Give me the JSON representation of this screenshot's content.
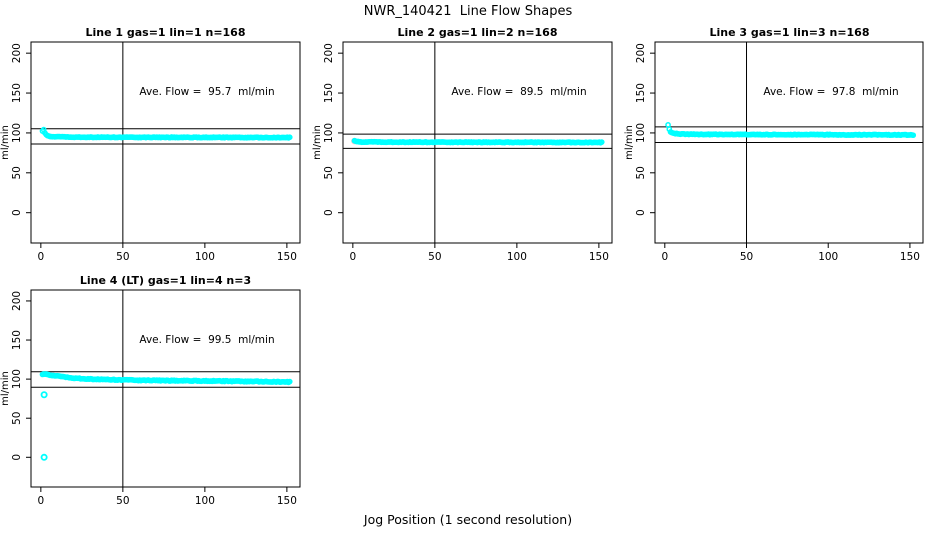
{
  "figure": {
    "title": "NWR_140421  Line Flow Shapes",
    "xlabel": "Jog Position (1 second resolution)"
  },
  "colors": {
    "series": "#00FFFF",
    "first_point": "#FFC0CB",
    "axis": "#000000",
    "background": "#FFFFFF"
  },
  "chart_data": [
    {
      "type": "scatter",
      "title": "Line 1 gas=1 lin=1 n=168",
      "annotation": "Ave. Flow =  95.7  ml/min",
      "ave_flow_ml_min": 95.7,
      "n": 168,
      "ylabel": "ml/min",
      "x_ticks": [
        0,
        50,
        100,
        150
      ],
      "y_ticks": [
        0,
        50,
        100,
        150,
        200
      ],
      "xlim": [
        -6,
        158
      ],
      "ylim": [
        -38,
        214
      ],
      "vline_x": 50,
      "hlines": [
        105.3,
        86.1
      ],
      "series_keypoints": [
        [
          1,
          102
        ],
        [
          2,
          104.5
        ],
        [
          2.6,
          99
        ],
        [
          3.5,
          97
        ],
        [
          5,
          96
        ],
        [
          8,
          95.2
        ],
        [
          15,
          94.8
        ],
        [
          30,
          94.6
        ],
        [
          60,
          94.5
        ],
        [
          100,
          94.4
        ],
        [
          152,
          94.2
        ]
      ],
      "pink_points": [],
      "outlier_points": []
    },
    {
      "type": "scatter",
      "title": "Line 2 gas=1 lin=2 n=168",
      "annotation": "Ave. Flow =  89.5  ml/min",
      "ave_flow_ml_min": 89.5,
      "n": 168,
      "ylabel": "ml/min",
      "x_ticks": [
        0,
        50,
        100,
        150
      ],
      "y_ticks": [
        0,
        50,
        100,
        150,
        200
      ],
      "xlim": [
        -6,
        158
      ],
      "ylim": [
        -38,
        214
      ],
      "vline_x": 50,
      "hlines": [
        98.5,
        80.6
      ],
      "series_keypoints": [
        [
          1,
          89.8
        ],
        [
          2,
          89.2
        ],
        [
          4,
          88.8
        ],
        [
          10,
          88.5
        ],
        [
          40,
          88.4
        ],
        [
          80,
          88.3
        ],
        [
          152,
          88.1
        ]
      ],
      "pink_points": [
        [
          1,
          89.8
        ]
      ],
      "outlier_points": []
    },
    {
      "type": "scatter",
      "title": "Line 3 gas=1 lin=3 n=168",
      "annotation": "Ave. Flow =  97.8  ml/min",
      "ave_flow_ml_min": 97.8,
      "n": 168,
      "ylabel": "ml/min",
      "x_ticks": [
        0,
        50,
        100,
        150
      ],
      "y_ticks": [
        0,
        50,
        100,
        150,
        200
      ],
      "xlim": [
        -6,
        158
      ],
      "ylim": [
        -38,
        214
      ],
      "vline_x": 50,
      "hlines": [
        107.6,
        88.0
      ],
      "series_keypoints": [
        [
          2,
          110.5
        ],
        [
          2.5,
          106
        ],
        [
          3,
          102.5
        ],
        [
          4,
          100.5
        ],
        [
          6,
          99.3
        ],
        [
          10,
          98.6
        ],
        [
          20,
          98.2
        ],
        [
          50,
          98
        ],
        [
          100,
          97.8
        ],
        [
          152,
          97.5
        ]
      ],
      "pink_points": [],
      "outlier_points": []
    },
    {
      "type": "scatter",
      "title": "Line 4 (LT) gas=1 lin=4 n=3",
      "annotation": "Ave. Flow =  99.5  ml/min",
      "ave_flow_ml_min": 99.5,
      "n": 3,
      "ylabel": "ml/min",
      "x_ticks": [
        0,
        50,
        100,
        150
      ],
      "y_ticks": [
        0,
        50,
        100,
        150,
        200
      ],
      "xlim": [
        -6,
        158
      ],
      "ylim": [
        -38,
        214
      ],
      "vline_x": 50,
      "hlines": [
        109.5,
        89.6
      ],
      "series_keypoints": [
        [
          1,
          105.5
        ],
        [
          2,
          106.5
        ],
        [
          4,
          106
        ],
        [
          7,
          104.8
        ],
        [
          10,
          103.8
        ],
        [
          15,
          102.3
        ],
        [
          20,
          101.3
        ],
        [
          25,
          100.6
        ],
        [
          30,
          100.1
        ],
        [
          40,
          99.4
        ],
        [
          50,
          99
        ],
        [
          60,
          98.6
        ],
        [
          75,
          98.2
        ],
        [
          90,
          97.9
        ],
        [
          105,
          97.6
        ],
        [
          120,
          97.3
        ],
        [
          135,
          96.9
        ],
        [
          152,
          96.3
        ]
      ],
      "pink_points": [],
      "outlier_points": [
        [
          2,
          80
        ],
        [
          2,
          0
        ]
      ]
    }
  ]
}
